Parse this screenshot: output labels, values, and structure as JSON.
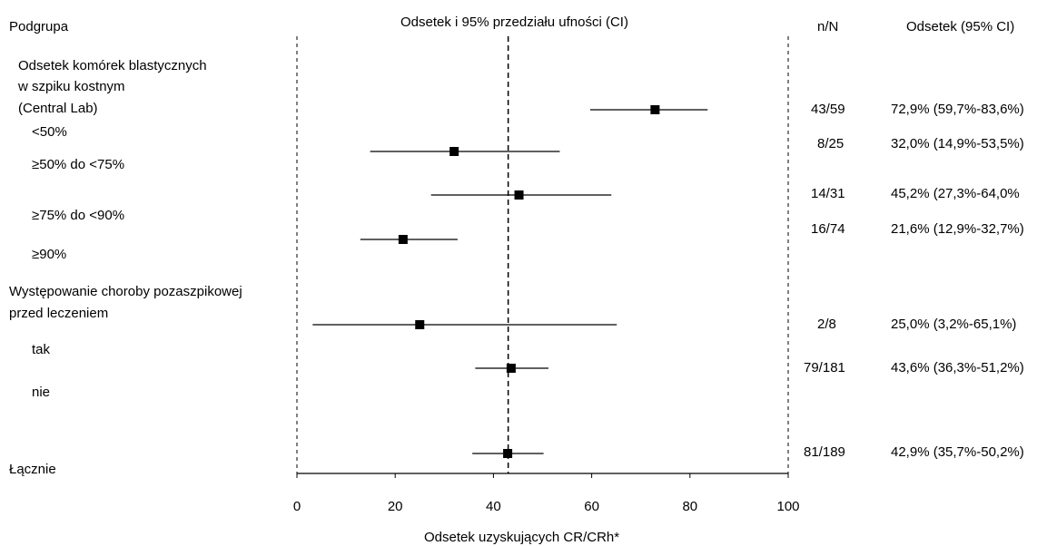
{
  "chart_data": {
    "type": "forest",
    "headers": {
      "subgroup": "Podgrupa",
      "ci_title": "Odsetek i 95% przedziału ufności (CI)",
      "nN": "n/N",
      "pct": "Odsetek (95% CI)"
    },
    "xlabel": "Odsetek uzyskujących CR/CRh*",
    "xlim": [
      0,
      100
    ],
    "xticks": [
      0,
      20,
      40,
      60,
      80,
      100
    ],
    "reference_line": 43,
    "groups": [
      {
        "label": "Odsetek komórek blastycznych",
        "label2": "w szpiku kostnym",
        "label3": "(Central Lab)"
      },
      {
        "label": "Występowanie choroby pozaszpikowej",
        "label2": "przed leczeniem"
      }
    ],
    "rows": [
      {
        "label": "<50%",
        "estimate": 72.9,
        "lower": 59.7,
        "upper": 83.6,
        "nN": "43/59",
        "pct": "72,9% (59,7%-83,6%)"
      },
      {
        "label": "≥50% do <75%",
        "estimate": 32.0,
        "lower": 14.9,
        "upper": 53.5,
        "nN": "8/25",
        "pct": "32,0% (14,9%-53,5%)"
      },
      {
        "label": "≥75% do <90%",
        "estimate": 45.2,
        "lower": 27.3,
        "upper": 64.0,
        "nN": "14/31",
        "pct": "45,2% (27,3%-64,0%"
      },
      {
        "label": "≥90%",
        "estimate": 21.6,
        "lower": 12.9,
        "upper": 32.7,
        "nN": "16/74",
        "pct": "21,6% (12,9%-32,7%)"
      },
      {
        "label": "tak",
        "estimate": 25.0,
        "lower": 3.2,
        "upper": 65.1,
        "nN": "2/8",
        "pct": "25,0% (3,2%-65,1%)"
      },
      {
        "label": "nie",
        "estimate": 43.6,
        "lower": 36.3,
        "upper": 51.2,
        "nN": "79/181",
        "pct": "43,6% (36,3%-51,2%)"
      },
      {
        "label": "Łącznie",
        "estimate": 42.9,
        "lower": 35.7,
        "upper": 50.2,
        "nN": "81/189",
        "pct": "42,9% (35,7%-50,2%)"
      }
    ]
  }
}
